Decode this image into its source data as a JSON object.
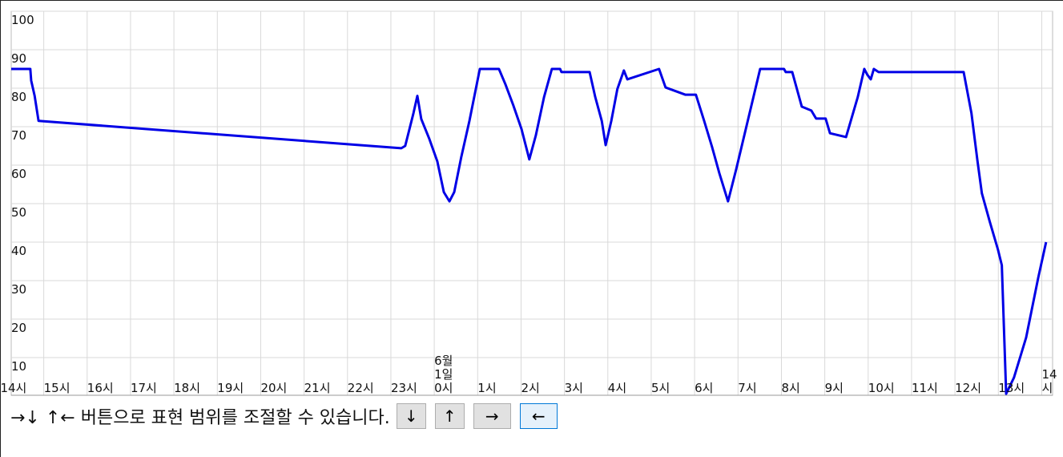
{
  "chart_data": {
    "type": "line",
    "x": [
      0.25,
      0.69,
      0.71,
      0.79,
      0.88,
      9.24,
      9.33,
      9.42,
      9.52,
      9.61,
      9.7,
      9.88,
      10.07,
      10.22,
      10.35,
      10.46,
      10.62,
      10.81,
      11.05,
      11.49,
      11.64,
      11.82,
      12.01,
      12.19,
      12.34,
      12.53,
      12.71,
      12.9,
      12.93,
      13.58,
      13.71,
      13.86,
      13.95,
      14.08,
      14.22,
      14.37,
      14.45,
      15.18,
      15.33,
      15.79,
      16.03,
      16.22,
      16.4,
      16.57,
      16.77,
      16.96,
      17.18,
      17.51,
      18.06,
      18.1,
      18.25,
      18.47,
      18.69,
      18.8,
      19.02,
      19.12,
      19.49,
      19.76,
      19.91,
      19.98,
      20.06,
      20.13,
      20.24,
      22.2,
      22.38,
      22.52,
      22.62,
      22.8,
      22.99,
      23.08,
      23.18,
      23.36,
      23.64,
      23.92,
      24.1
    ],
    "series": [
      {
        "color": "#0000e6",
        "values": [
          85,
          85,
          82,
          78,
          71.5,
          64.4,
          65,
          69,
          73.5,
          78,
          72,
          67,
          61,
          53,
          50.6,
          53,
          62,
          71.5,
          85,
          85,
          81,
          75.6,
          69.4,
          61.5,
          67.7,
          77.7,
          85,
          85,
          84.2,
          84.2,
          77.7,
          71.5,
          65.2,
          71.5,
          79.8,
          84.6,
          82.3,
          85,
          80.2,
          78.3,
          78.3,
          71.5,
          64.8,
          57.9,
          50.6,
          59,
          69.4,
          85,
          85,
          84.2,
          84.2,
          75.2,
          74.2,
          72.1,
          72.1,
          68.3,
          67.3,
          77.7,
          85,
          83.5,
          82.3,
          85,
          84.2,
          84.2,
          73.5,
          61,
          52.7,
          45.4,
          38.1,
          34,
          0.6,
          4.8,
          15.2,
          30.8,
          40
        ]
      }
    ],
    "xlim": [
      0.25,
      24.25
    ],
    "xticks": [
      {
        "value": 0,
        "label": "14시"
      },
      {
        "value": 1,
        "label": "15시"
      },
      {
        "value": 2,
        "label": "16시"
      },
      {
        "value": 3,
        "label": "17시"
      },
      {
        "value": 4,
        "label": "18시"
      },
      {
        "value": 5,
        "label": "19시"
      },
      {
        "value": 6,
        "label": "20시"
      },
      {
        "value": 7,
        "label": "21시"
      },
      {
        "value": 8,
        "label": "22시"
      },
      {
        "value": 9,
        "label": "23시"
      },
      {
        "value": 10,
        "label": "6월\n1일\n0시"
      },
      {
        "value": 11,
        "label": "1시"
      },
      {
        "value": 12,
        "label": "2시"
      },
      {
        "value": 13,
        "label": "3시"
      },
      {
        "value": 14,
        "label": "4시"
      },
      {
        "value": 15,
        "label": "5시"
      },
      {
        "value": 16,
        "label": "6시"
      },
      {
        "value": 17,
        "label": "7시"
      },
      {
        "value": 18,
        "label": "8시"
      },
      {
        "value": 19,
        "label": "9시"
      },
      {
        "value": 20,
        "label": "10시"
      },
      {
        "value": 21,
        "label": "11시"
      },
      {
        "value": 22,
        "label": "12시"
      },
      {
        "value": 23,
        "label": "13시"
      },
      {
        "value": 24,
        "label": "14시"
      }
    ],
    "ylim": [
      0,
      100
    ],
    "yticks": [
      10,
      20,
      30,
      40,
      50,
      60,
      70,
      80,
      90,
      100
    ],
    "grid": true
  },
  "controls": {
    "instructions": "→↓ ↑← 버튼으로 표현 범위를 조절할 수 있습니다.",
    "buttons": [
      "↓",
      "↑",
      "→",
      "←"
    ]
  }
}
